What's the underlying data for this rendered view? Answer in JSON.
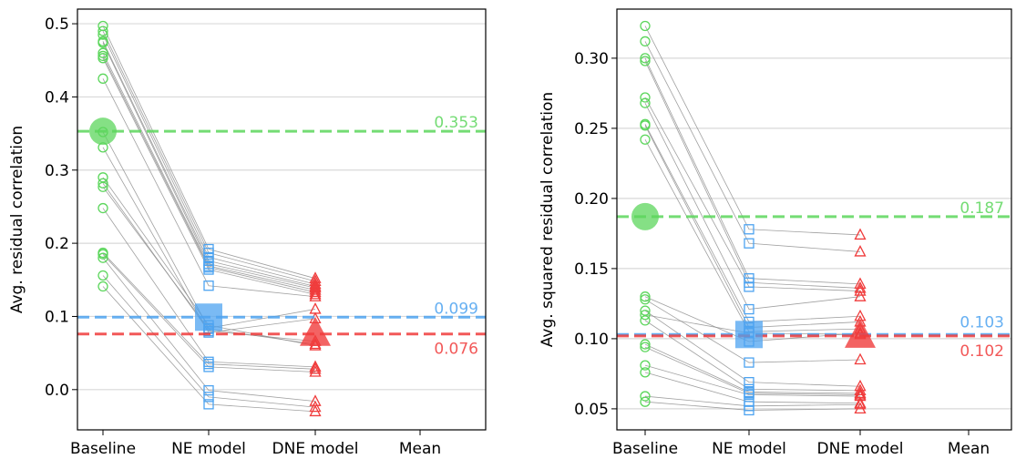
{
  "chart_data": [
    {
      "type": "scatter",
      "title": "",
      "xlabel": "",
      "ylabel": "Avg. residual correlation",
      "categories": [
        "Baseline",
        "NE model",
        "DNE model",
        "Mean"
      ],
      "ylim": [
        -0.055,
        0.52
      ],
      "yticks": [
        0.0,
        0.1,
        0.2,
        0.3,
        0.4,
        0.5
      ],
      "ytick_labels": [
        "0.0",
        "0.1",
        "0.2",
        "0.3",
        "0.4",
        "0.5"
      ],
      "grid": "horizontal",
      "colors": {
        "baseline": "#5cd65c",
        "ne": "#4da3f0",
        "dne": "#f03c3c",
        "link": "#888888"
      },
      "subjects": [
        [
          0.497,
          0.192,
          0.152
        ],
        [
          0.49,
          0.187,
          0.148
        ],
        [
          0.485,
          0.181,
          0.144
        ],
        [
          0.476,
          0.176,
          0.141
        ],
        [
          0.474,
          0.172,
          0.139
        ],
        [
          0.46,
          0.169,
          0.136
        ],
        [
          0.456,
          0.167,
          0.133
        ],
        [
          0.453,
          0.164,
          0.13
        ],
        [
          0.425,
          0.142,
          0.127
        ],
        [
          0.352,
          0.084,
          0.11
        ],
        [
          0.331,
          0.078,
          0.097
        ],
        [
          0.29,
          0.088,
          0.06
        ],
        [
          0.282,
          0.08,
          0.066
        ],
        [
          0.277,
          0.083,
          0.062
        ],
        [
          0.248,
          0.038,
          0.031
        ],
        [
          0.187,
          0.035,
          0.028
        ],
        [
          0.185,
          0.031,
          0.024
        ],
        [
          0.18,
          -0.001,
          -0.016
        ],
        [
          0.156,
          -0.01,
          -0.024
        ],
        [
          0.141,
          -0.02,
          -0.03
        ]
      ],
      "means": [
        0.353,
        0.099,
        0.076
      ],
      "ref_labels": [
        "0.353",
        "0.099",
        "0.076"
      ]
    },
    {
      "type": "scatter",
      "title": "",
      "xlabel": "",
      "ylabel": "Avg. squared residual correlation",
      "categories": [
        "Baseline",
        "NE model",
        "DNE model",
        "Mean"
      ],
      "ylim": [
        0.035,
        0.335
      ],
      "yticks": [
        0.05,
        0.1,
        0.15,
        0.2,
        0.25,
        0.3
      ],
      "ytick_labels": [
        "0.05",
        "0.10",
        "0.15",
        "0.20",
        "0.25",
        "0.30"
      ],
      "grid": "horizontal",
      "colors": {
        "baseline": "#5cd65c",
        "ne": "#4da3f0",
        "dne": "#f03c3c",
        "link": "#888888"
      },
      "subjects": [
        [
          0.323,
          0.178,
          0.174
        ],
        [
          0.312,
          0.168,
          0.162
        ],
        [
          0.3,
          0.143,
          0.139
        ],
        [
          0.298,
          0.14,
          0.136
        ],
        [
          0.272,
          0.137,
          0.134
        ],
        [
          0.268,
          0.121,
          0.13
        ],
        [
          0.253,
          0.112,
          0.116
        ],
        [
          0.252,
          0.108,
          0.112
        ],
        [
          0.242,
          0.105,
          0.107
        ],
        [
          0.13,
          0.098,
          0.104
        ],
        [
          0.128,
          0.083,
          0.085
        ],
        [
          0.12,
          0.069,
          0.066
        ],
        [
          0.113,
          0.064,
          0.063
        ],
        [
          0.096,
          0.062,
          0.061
        ],
        [
          0.094,
          0.061,
          0.06
        ],
        [
          0.081,
          0.06,
          0.059
        ],
        [
          0.076,
          0.055,
          0.054
        ],
        [
          0.059,
          0.052,
          0.053
        ],
        [
          0.055,
          0.049,
          0.05
        ],
        [
          0.117,
          0.104,
          0.103
        ]
      ],
      "means": [
        0.187,
        0.103,
        0.102
      ],
      "ref_labels": [
        "0.187",
        "0.103",
        "0.102"
      ]
    }
  ]
}
